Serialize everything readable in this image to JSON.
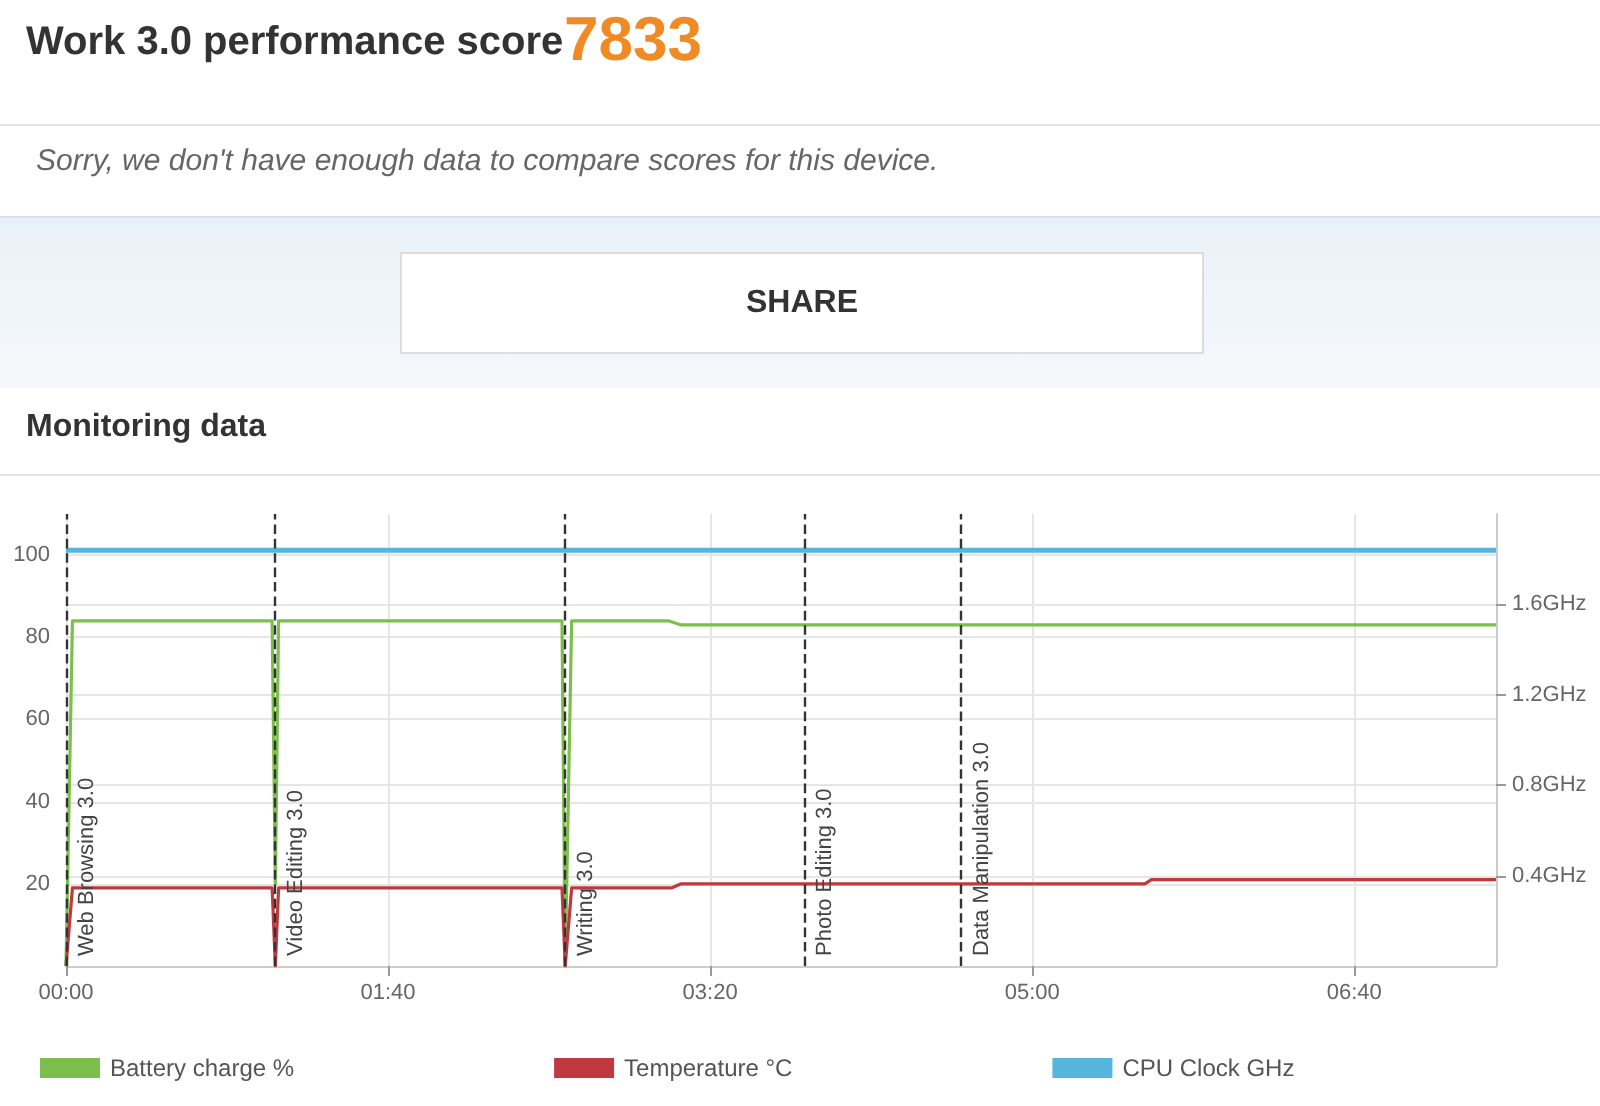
{
  "chart_data": {
    "type": "line",
    "title": "Work 3.0 performance score",
    "subtitle": "Sorry, we don't have enough data to compare scores for this device.",
    "annotations": [
      "7833",
      "SHARE",
      "Monitoring data"
    ],
    "series": [
      {
        "name": "Battery charge %",
        "color": "#7cbf4a",
        "x": [
          0,
          2,
          64,
          65,
          66,
          154,
          155,
          157,
          187,
          191,
          444
        ],
        "values": [
          0,
          84,
          84,
          20,
          84,
          84,
          0,
          84,
          84,
          83,
          83
        ]
      },
      {
        "name": "Temperature °C",
        "color": "#c0393f",
        "x": [
          0,
          2,
          64,
          65,
          66,
          154,
          155,
          157,
          188,
          191,
          335,
          337,
          444
        ],
        "values": [
          0,
          19,
          19,
          0,
          19,
          19,
          0,
          19,
          19,
          20,
          20,
          21,
          21
        ]
      },
      {
        "name": "CPU Clock GHz",
        "color": "#55b5dc",
        "axis": "y2",
        "x": [
          0,
          444
        ],
        "values": [
          1.84,
          1.84
        ]
      }
    ],
    "xlim": [
      0,
      444
    ],
    "xticks": [
      {
        "value": 0,
        "label": "00:00"
      },
      {
        "value": 100,
        "label": "01:40"
      },
      {
        "value": 200,
        "label": "03:20"
      },
      {
        "value": 300,
        "label": "05:00"
      },
      {
        "value": 400,
        "label": "06:40"
      }
    ],
    "ylim": [
      0,
      110
    ],
    "yticks": [
      {
        "value": 0,
        "label": null
      },
      20,
      40,
      60,
      80,
      100
    ],
    "y2lim": [
      0,
      2.0
    ],
    "y2ticks": [
      {
        "value": 0.4,
        "label": "0.4GHz"
      },
      {
        "value": 0.8,
        "label": "0.8GHz"
      },
      {
        "value": 1.2,
        "label": "1.2GHz"
      },
      {
        "value": 1.6,
        "label": "1.6GHz"
      }
    ],
    "ref_lines": [
      {
        "axis": "x",
        "value": 0,
        "label": "Web Browsing 3.0",
        "color": "#333333",
        "line_style": "dashed"
      },
      {
        "axis": "x",
        "value": 65,
        "label": "Video Editing 3.0",
        "color": "#333333",
        "line_style": "dashed"
      },
      {
        "axis": "x",
        "value": 155,
        "label": "Writing 3.0",
        "color": "#333333",
        "line_style": "dashed"
      },
      {
        "axis": "x",
        "value": 229,
        "label": "Photo Editing 3.0",
        "color": "#333333",
        "line_style": "dashed"
      },
      {
        "axis": "x",
        "value": 278,
        "label": "Data Manipulation 3.0",
        "color": "#333333",
        "line_style": "dashed"
      }
    ],
    "grid": true,
    "legend": "bottom",
    "marker": "none",
    "line_style": "solid"
  }
}
